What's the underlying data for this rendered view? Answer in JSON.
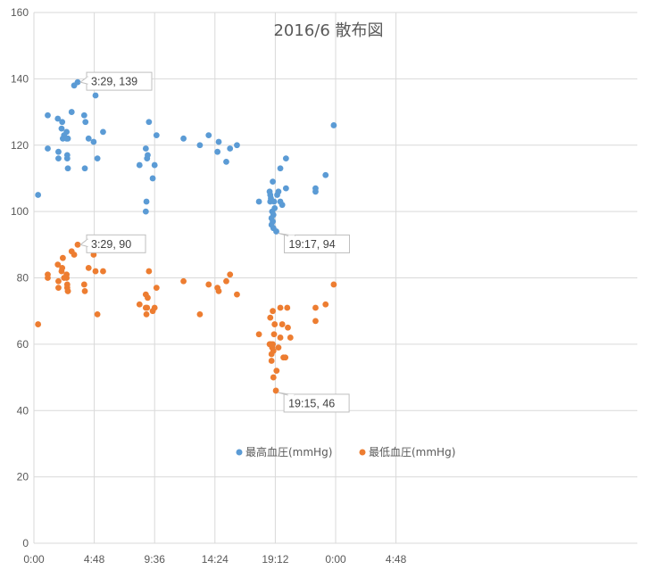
{
  "chart_data": {
    "type": "scatter",
    "title": "2016/6 散布図",
    "xlabel": "",
    "ylabel": "",
    "xlim": [
      0,
      48
    ],
    "ylim": [
      0,
      160
    ],
    "x_ticks": [
      0,
      4.8,
      9.6,
      14.4,
      19.2,
      24,
      28.8
    ],
    "x_tick_labels": [
      "0:00",
      "4:48",
      "9:36",
      "14:24",
      "19:12",
      "0:00",
      "4:48"
    ],
    "y_ticks": [
      0,
      20,
      40,
      60,
      80,
      100,
      120,
      140,
      160
    ],
    "y_tick_labels": [
      "0",
      "20",
      "40",
      "60",
      "80",
      "100",
      "120",
      "140",
      "160"
    ],
    "grid": true,
    "legend_position": "bottom-center",
    "colors": {
      "systolic": "#5B9BD5",
      "diastolic": "#ED7D31",
      "grid": "#D9D9D9",
      "text": "#595959"
    },
    "series": [
      {
        "name": "最高血圧(mmHg)",
        "color": "#5B9BD5",
        "points": [
          [
            0.33,
            105
          ],
          [
            1.1,
            129
          ],
          [
            1.1,
            119
          ],
          [
            1.9,
            128
          ],
          [
            1.95,
            116
          ],
          [
            1.95,
            118
          ],
          [
            2.2,
            125
          ],
          [
            2.25,
            127
          ],
          [
            2.3,
            122
          ],
          [
            2.4,
            123
          ],
          [
            2.6,
            124
          ],
          [
            2.6,
            122
          ],
          [
            2.65,
            117
          ],
          [
            2.65,
            116
          ],
          [
            2.7,
            122
          ],
          [
            2.7,
            113
          ],
          [
            3.0,
            130
          ],
          [
            3.2,
            138
          ],
          [
            3.48,
            139
          ],
          [
            4.0,
            129
          ],
          [
            4.05,
            113
          ],
          [
            4.1,
            127
          ],
          [
            4.35,
            122
          ],
          [
            4.75,
            121
          ],
          [
            4.9,
            135
          ],
          [
            5.05,
            116
          ],
          [
            5.5,
            124
          ],
          [
            8.4,
            114
          ],
          [
            8.9,
            119
          ],
          [
            8.9,
            100
          ],
          [
            8.95,
            103
          ],
          [
            9.0,
            116
          ],
          [
            9.05,
            117
          ],
          [
            9.15,
            127
          ],
          [
            9.45,
            110
          ],
          [
            9.6,
            114
          ],
          [
            9.75,
            123
          ],
          [
            11.9,
            122
          ],
          [
            13.2,
            120
          ],
          [
            13.9,
            123
          ],
          [
            14.6,
            118
          ],
          [
            14.7,
            121
          ],
          [
            15.3,
            115
          ],
          [
            15.6,
            119
          ],
          [
            16.15,
            120
          ],
          [
            17.9,
            103
          ],
          [
            18.75,
            106
          ],
          [
            18.8,
            105
          ],
          [
            18.8,
            103
          ],
          [
            18.85,
            104
          ],
          [
            18.9,
            98
          ],
          [
            18.9,
            96
          ],
          [
            18.95,
            100
          ],
          [
            19.0,
            109
          ],
          [
            19.0,
            97
          ],
          [
            19.05,
            99
          ],
          [
            19.05,
            95
          ],
          [
            19.1,
            103
          ],
          [
            19.15,
            101
          ],
          [
            19.28,
            94
          ],
          [
            19.35,
            105
          ],
          [
            19.45,
            106
          ],
          [
            19.6,
            113
          ],
          [
            19.6,
            103
          ],
          [
            19.75,
            102
          ],
          [
            20.05,
            107
          ],
          [
            20.05,
            116
          ],
          [
            22.4,
            107
          ],
          [
            22.4,
            106
          ],
          [
            23.2,
            111
          ],
          [
            23.85,
            126
          ]
        ]
      },
      {
        "name": "最低血圧(mmHg)",
        "color": "#ED7D31",
        "points": [
          [
            0.33,
            66
          ],
          [
            1.1,
            81
          ],
          [
            1.1,
            80
          ],
          [
            1.9,
            84
          ],
          [
            1.95,
            79
          ],
          [
            1.95,
            77
          ],
          [
            2.2,
            82
          ],
          [
            2.25,
            83
          ],
          [
            2.3,
            86
          ],
          [
            2.4,
            80
          ],
          [
            2.6,
            81
          ],
          [
            2.6,
            80
          ],
          [
            2.65,
            78
          ],
          [
            2.65,
            77
          ],
          [
            2.7,
            76
          ],
          [
            2.7,
            76
          ],
          [
            3.0,
            88
          ],
          [
            3.2,
            87
          ],
          [
            3.48,
            90
          ],
          [
            4.0,
            78
          ],
          [
            4.05,
            76
          ],
          [
            4.35,
            83
          ],
          [
            4.75,
            87
          ],
          [
            4.9,
            82
          ],
          [
            5.05,
            69
          ],
          [
            5.5,
            82
          ],
          [
            8.4,
            72
          ],
          [
            8.9,
            75
          ],
          [
            8.9,
            71
          ],
          [
            8.95,
            69
          ],
          [
            9.0,
            71
          ],
          [
            9.05,
            74
          ],
          [
            9.15,
            82
          ],
          [
            9.45,
            70
          ],
          [
            9.6,
            71
          ],
          [
            9.75,
            77
          ],
          [
            11.9,
            79
          ],
          [
            13.2,
            69
          ],
          [
            13.9,
            78
          ],
          [
            14.6,
            77
          ],
          [
            14.7,
            76
          ],
          [
            15.3,
            79
          ],
          [
            15.6,
            81
          ],
          [
            16.15,
            75
          ],
          [
            17.9,
            63
          ],
          [
            18.75,
            60
          ],
          [
            18.8,
            68
          ],
          [
            18.8,
            60
          ],
          [
            18.85,
            60
          ],
          [
            18.9,
            57
          ],
          [
            18.9,
            55
          ],
          [
            18.95,
            59
          ],
          [
            19.0,
            70
          ],
          [
            19.0,
            60
          ],
          [
            19.05,
            58
          ],
          [
            19.05,
            50
          ],
          [
            19.1,
            63
          ],
          [
            19.15,
            66
          ],
          [
            19.25,
            46
          ],
          [
            19.3,
            52
          ],
          [
            19.45,
            59
          ],
          [
            19.6,
            71
          ],
          [
            19.6,
            62
          ],
          [
            19.75,
            66
          ],
          [
            19.85,
            56
          ],
          [
            20.0,
            56
          ],
          [
            20.15,
            71
          ],
          [
            20.2,
            65
          ],
          [
            20.4,
            62
          ],
          [
            22.4,
            71
          ],
          [
            22.4,
            67
          ],
          [
            23.2,
            72
          ],
          [
            23.85,
            78
          ]
        ]
      }
    ],
    "annotations": [
      {
        "series": 0,
        "x": 3.48,
        "y": 139,
        "label": "3:29, 139",
        "placement": "right"
      },
      {
        "series": 1,
        "x": 3.48,
        "y": 90,
        "label": "3:29, 90",
        "placement": "right"
      },
      {
        "series": 0,
        "x": 19.28,
        "y": 94,
        "label": "19:17, 94",
        "placement": "below-right"
      },
      {
        "series": 1,
        "x": 19.25,
        "y": 46,
        "label": "19:15, 46",
        "placement": "below-right"
      }
    ]
  }
}
